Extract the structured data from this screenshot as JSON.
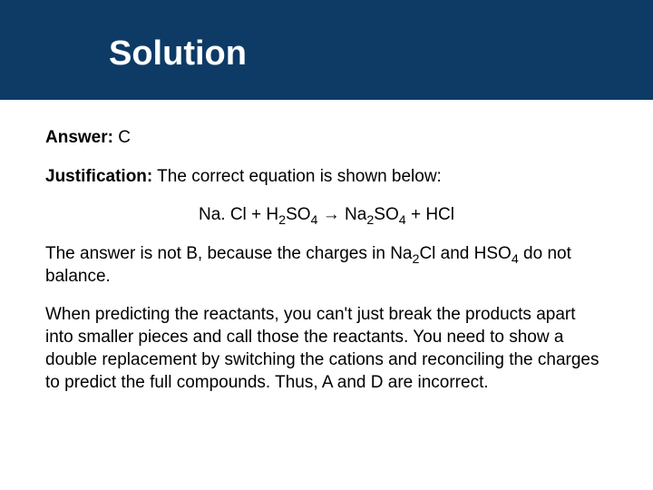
{
  "header": {
    "title": "Solution"
  },
  "body": {
    "answer_label": "Answer:",
    "answer_value": "  C",
    "just_label": "Justification:",
    "just_text": " The correct equation is shown below:",
    "eq_part1": "Na. Cl + H",
    "eq_sub1": "2",
    "eq_part2": "SO",
    "eq_sub2": "4",
    "eq_arrow": " → ",
    "eq_part3": "Na",
    "eq_sub3": "2",
    "eq_part4": "SO",
    "eq_sub4": "4",
    "eq_part5": " + HCl",
    "p2_a": "The answer is not B, because the charges in Na",
    "p2_s1": "2",
    "p2_b": "Cl and HSO",
    "p2_s2": "4",
    "p2_c": " do not balance.",
    "p3": "When predicting the reactants, you can't just break the products apart into smaller pieces and call those the reactants. You need to show a double replacement by switching the cations and reconciling the charges to predict the full compounds. Thus, A and D are incorrect."
  },
  "colors": {
    "header_bg": "#0d3b66",
    "header_text": "#ffffff",
    "body_text": "#000000",
    "page_bg": "#ffffff"
  }
}
